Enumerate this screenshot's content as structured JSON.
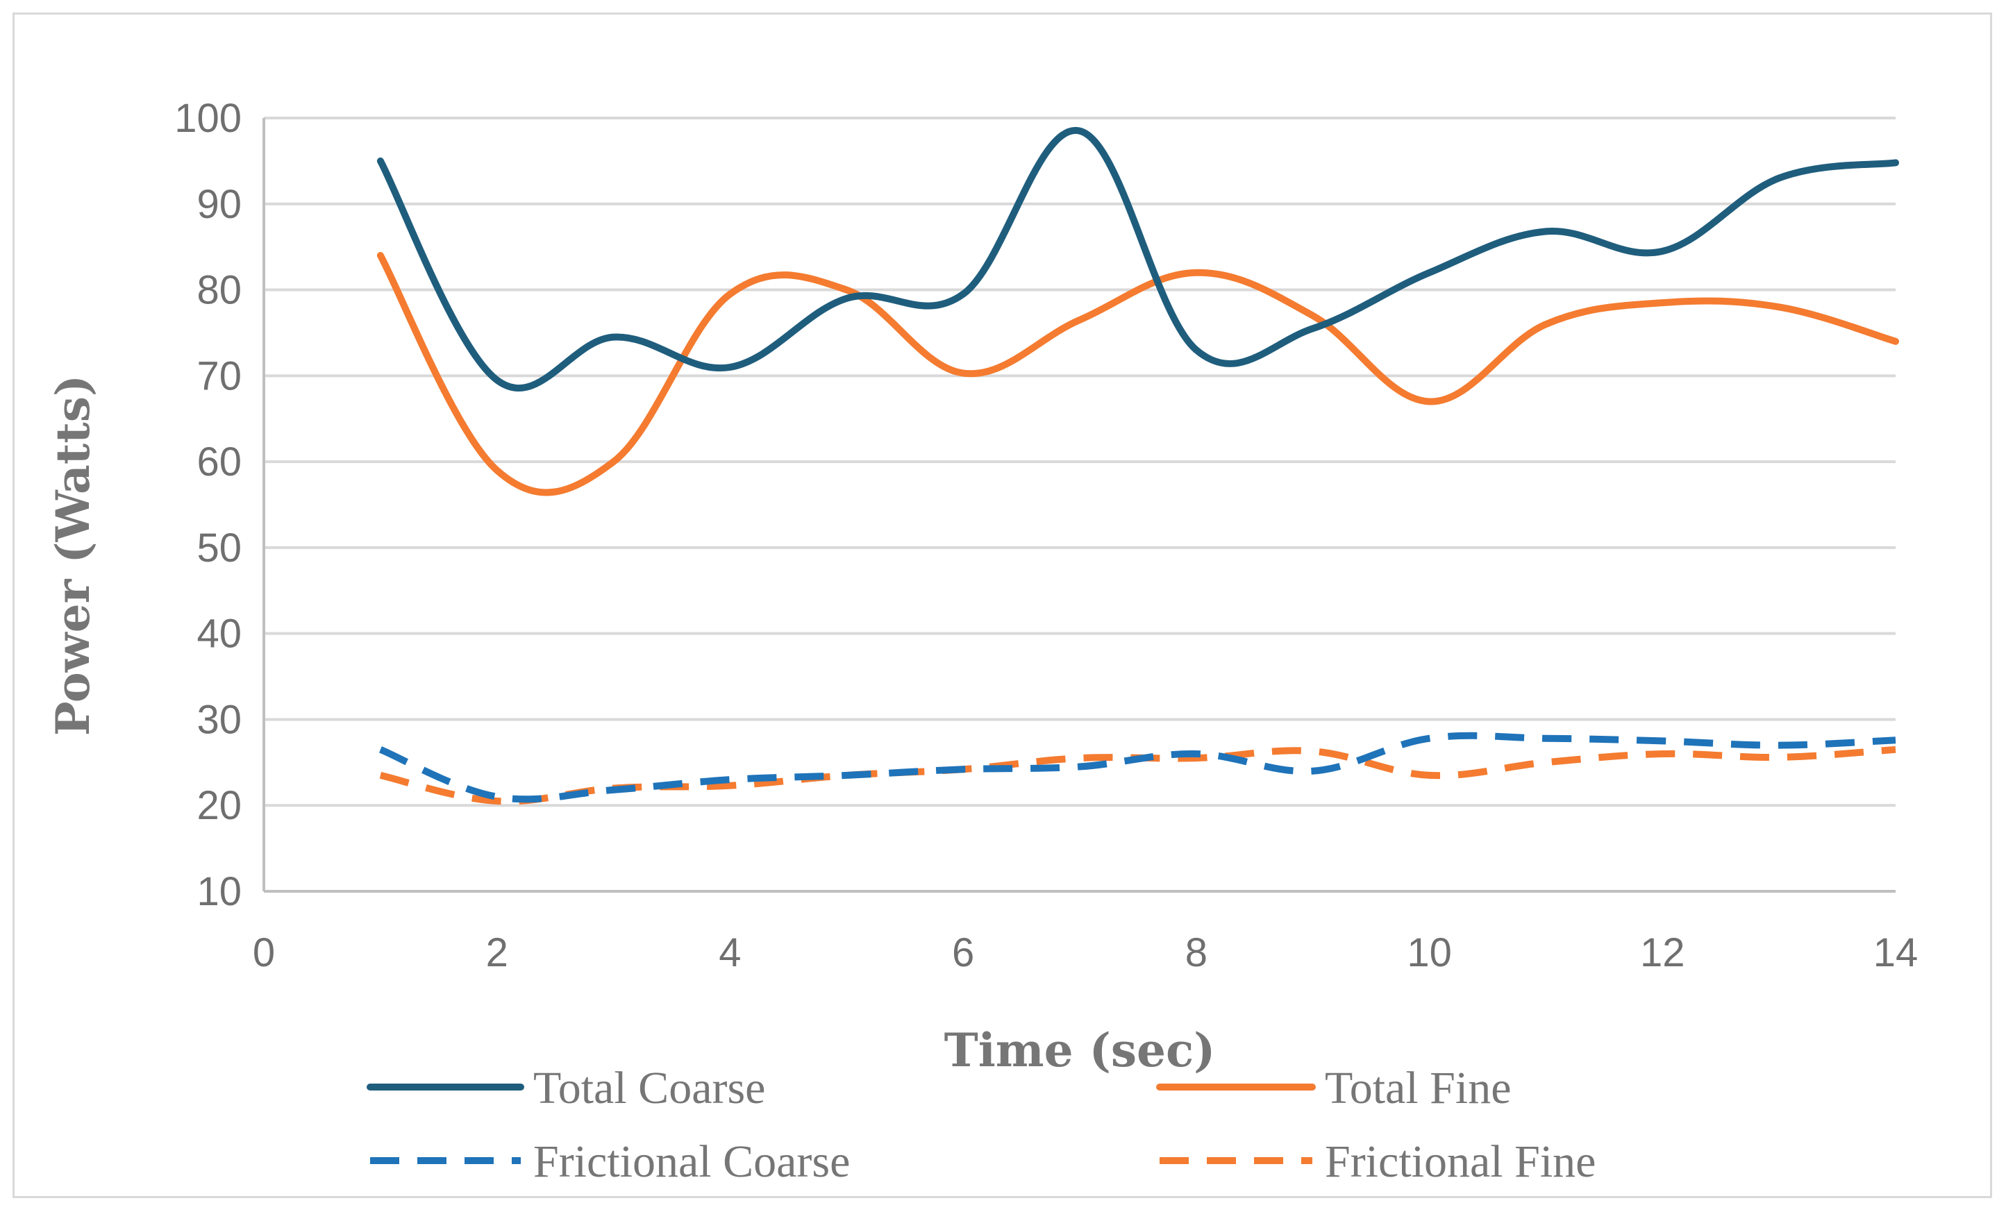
{
  "chart_data": {
    "type": "line",
    "title": "",
    "xlabel": "Time (sec)",
    "ylabel": "Power (Watts)",
    "xlim": [
      0,
      14
    ],
    "ylim": [
      10,
      100
    ],
    "x_ticks": [
      0,
      2,
      4,
      6,
      8,
      10,
      12,
      14
    ],
    "y_ticks": [
      10,
      20,
      30,
      40,
      50,
      60,
      70,
      80,
      90,
      100
    ],
    "grid": "horizontal",
    "legend_position": "bottom",
    "x": [
      1,
      2,
      3,
      4,
      5,
      6,
      7,
      8,
      9,
      10,
      11,
      12,
      13,
      14
    ],
    "series": [
      {
        "name": "Total Coarse",
        "color": "#1f5d7d",
        "style": "solid",
        "values": [
          95,
          69.5,
          74.5,
          71,
          79,
          79.5,
          98.5,
          73,
          75.5,
          82,
          86.8,
          84.5,
          93,
          94.8
        ]
      },
      {
        "name": "Total Fine",
        "color": "#f47b30",
        "style": "solid",
        "values": [
          84,
          59,
          60,
          79.5,
          80,
          70.3,
          76.5,
          82,
          77,
          67,
          76,
          78.5,
          78,
          74
        ]
      },
      {
        "name": "Frictional Coarse",
        "color": "#1f73b9",
        "style": "dashed",
        "values": [
          26.5,
          21,
          21.8,
          23,
          23.5,
          24.2,
          24.5,
          26,
          24,
          27.8,
          27.8,
          27.5,
          27,
          27.6
        ]
      },
      {
        "name": "Frictional Fine",
        "color": "#f47b30",
        "style": "dashed",
        "values": [
          23.5,
          20.5,
          22,
          22.3,
          23.5,
          24.2,
          25.5,
          25.5,
          26.3,
          23.5,
          25,
          26,
          25.6,
          26.5
        ]
      }
    ]
  }
}
